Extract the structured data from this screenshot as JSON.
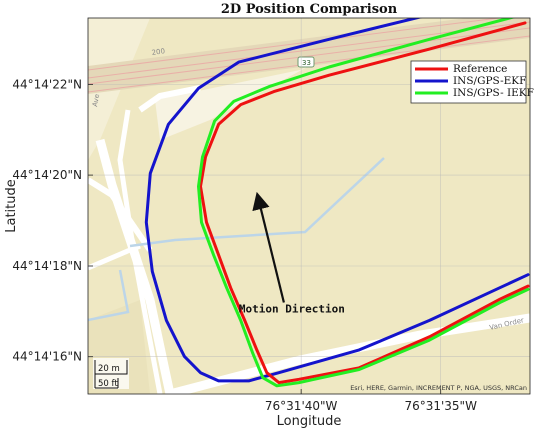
{
  "chart_data": {
    "type": "line",
    "title": "2D Position Comparison",
    "xlabel": "Longitude",
    "ylabel": "Latitude",
    "x_ticks": [
      {
        "label": "76°31'40\"W",
        "value": -76.527778
      },
      {
        "label": "76°31'35\"W",
        "value": -76.526389
      }
    ],
    "y_ticks": [
      {
        "label": "44°14'22\"N",
        "value": 44.239444
      },
      {
        "label": "44°14'20\"N",
        "value": 44.238889
      },
      {
        "label": "44°14'18\"N",
        "value": 44.238333
      },
      {
        "label": "44°14'16\"N",
        "value": 44.237778
      }
    ],
    "xlim": [
      -76.5299,
      -76.5255
    ],
    "ylim": [
      44.23755,
      44.23985
    ],
    "legend_position": "top-right",
    "grid": true,
    "series": [
      {
        "name": "Reference",
        "color": "#ee1111",
        "points": [
          [
            -76.52555,
            44.23982
          ],
          [
            -76.5265,
            44.23966
          ],
          [
            -76.5275,
            44.2395
          ],
          [
            -76.52805,
            44.2394
          ],
          [
            -76.52838,
            44.23932
          ],
          [
            -76.5286,
            44.2392
          ],
          [
            -76.52873,
            44.239
          ],
          [
            -76.52878,
            44.23882
          ],
          [
            -76.52872,
            44.2386
          ],
          [
            -76.5286,
            44.2384
          ],
          [
            -76.52848,
            44.2382
          ],
          [
            -76.52834,
            44.238
          ],
          [
            -76.52822,
            44.23782
          ],
          [
            -76.52812,
            44.23768
          ],
          [
            -76.528,
            44.23762
          ],
          [
            -76.5278,
            44.23764
          ],
          [
            -76.5272,
            44.23771
          ],
          [
            -76.5265,
            44.2379
          ],
          [
            -76.5258,
            44.23813
          ],
          [
            -76.52552,
            44.23821
          ]
        ]
      },
      {
        "name": "INS/GPS-EKF",
        "color": "#1414cc",
        "points": [
          [
            -76.52595,
            44.23994
          ],
          [
            -76.5265,
            44.23987
          ],
          [
            -76.5275,
            44.23972
          ],
          [
            -76.5284,
            44.23958
          ],
          [
            -76.5288,
            44.23942
          ],
          [
            -76.5291,
            44.2392
          ],
          [
            -76.52928,
            44.2389
          ],
          [
            -76.52932,
            44.2386
          ],
          [
            -76.52926,
            44.2383
          ],
          [
            -76.52912,
            44.238
          ],
          [
            -76.52894,
            44.23778
          ],
          [
            -76.52878,
            44.23768
          ],
          [
            -76.5286,
            44.23763
          ],
          [
            -76.5283,
            44.23763
          ],
          [
            -76.528,
            44.23768
          ],
          [
            -76.5272,
            44.23782
          ],
          [
            -76.5265,
            44.238
          ],
          [
            -76.5258,
            44.2382
          ],
          [
            -76.52552,
            44.23828
          ]
        ]
      },
      {
        "name": "INS/GPS- IEKF",
        "color": "#22ee22",
        "points": [
          [
            -76.52552,
            44.23988
          ],
          [
            -76.5265,
            44.23972
          ],
          [
            -76.5275,
            44.23955
          ],
          [
            -76.5281,
            44.23943
          ],
          [
            -76.52845,
            44.23934
          ],
          [
            -76.52864,
            44.23922
          ],
          [
            -76.52876,
            44.239
          ],
          [
            -76.5288,
            44.23882
          ],
          [
            -76.52877,
            44.2386
          ],
          [
            -76.52865,
            44.2384
          ],
          [
            -76.52852,
            44.2382
          ],
          [
            -76.52838,
            44.238
          ],
          [
            -76.52826,
            44.2378
          ],
          [
            -76.52816,
            44.23765
          ],
          [
            -76.52802,
            44.2376
          ],
          [
            -76.5278,
            44.23762
          ],
          [
            -76.5272,
            44.2377
          ],
          [
            -76.5265,
            44.23788
          ],
          [
            -76.5258,
            44.23811
          ],
          [
            -76.52552,
            44.23819
          ]
        ]
      }
    ],
    "annotations": [
      {
        "text": "Motion Direction",
        "arrow_from": [
          -76.52795,
          44.23811
        ],
        "arrow_to": [
          -76.52821,
          44.23876
        ]
      }
    ],
    "basemap": {
      "attribution": "Esri, HERE, Garmin, INCREMENT P, NGA, USGS, NRCan",
      "scale_labels": [
        "20 m",
        "50 ft"
      ],
      "road_labels": [
        "Ave",
        "Van Order",
        "200",
        "33"
      ]
    }
  }
}
